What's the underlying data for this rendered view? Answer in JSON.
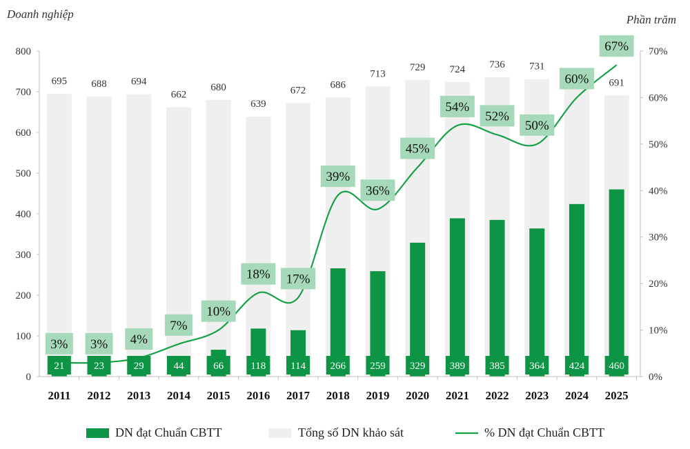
{
  "chart_data": {
    "type": "bar",
    "left_axis_title": "Doanh nghiệp",
    "right_axis_title": "Phần trăm",
    "categories": [
      "2011",
      "2012",
      "2013",
      "2014",
      "2015",
      "2016",
      "2017",
      "2018",
      "2019",
      "2020",
      "2021",
      "2022",
      "2023",
      "2024",
      "2025"
    ],
    "left_ticks": [
      "0",
      "100",
      "200",
      "300",
      "400",
      "500",
      "600",
      "700",
      "800"
    ],
    "right_ticks": [
      "0%",
      "10%",
      "20%",
      "30%",
      "40%",
      "50%",
      "60%",
      "70%"
    ],
    "ylim_left": [
      0,
      800
    ],
    "ylim_right": [
      0,
      70
    ],
    "grid": false,
    "legend_position": "bottom",
    "series": [
      {
        "name": "DN đạt Chuẩn CBTT",
        "type": "bar",
        "axis": "left",
        "color": "#0e9445",
        "values": [
          21,
          23,
          29,
          44,
          66,
          118,
          114,
          266,
          259,
          329,
          389,
          385,
          364,
          424,
          460
        ],
        "labels": [
          "21",
          "23",
          "29",
          "44",
          "66",
          "118",
          "114",
          "266",
          "259",
          "329",
          "389",
          "385",
          "364",
          "424",
          "460"
        ]
      },
      {
        "name": "Tổng số DN khảo sát",
        "type": "bar",
        "axis": "left",
        "color": "#efefef",
        "values": [
          695,
          688,
          694,
          662,
          680,
          639,
          672,
          686,
          713,
          729,
          724,
          736,
          731,
          708,
          691
        ],
        "labels": [
          "695",
          "688",
          "694",
          "662",
          "680",
          "639",
          "672",
          "686",
          "713",
          "729",
          "724",
          "736",
          "731",
          "708",
          "691"
        ]
      },
      {
        "name": "% DN đạt Chuẩn CBTT",
        "type": "line",
        "axis": "right",
        "color": "#16a048",
        "label_bg": "#a6d9b9",
        "values": [
          3,
          3,
          4,
          7,
          10,
          18,
          17,
          39,
          36,
          45,
          54,
          52,
          50,
          60,
          67
        ],
        "labels": [
          "3%",
          "3%",
          "4%",
          "7%",
          "10%",
          "18%",
          "17%",
          "39%",
          "36%",
          "45%",
          "54%",
          "52%",
          "50%",
          "60%",
          "67%"
        ]
      }
    ]
  }
}
